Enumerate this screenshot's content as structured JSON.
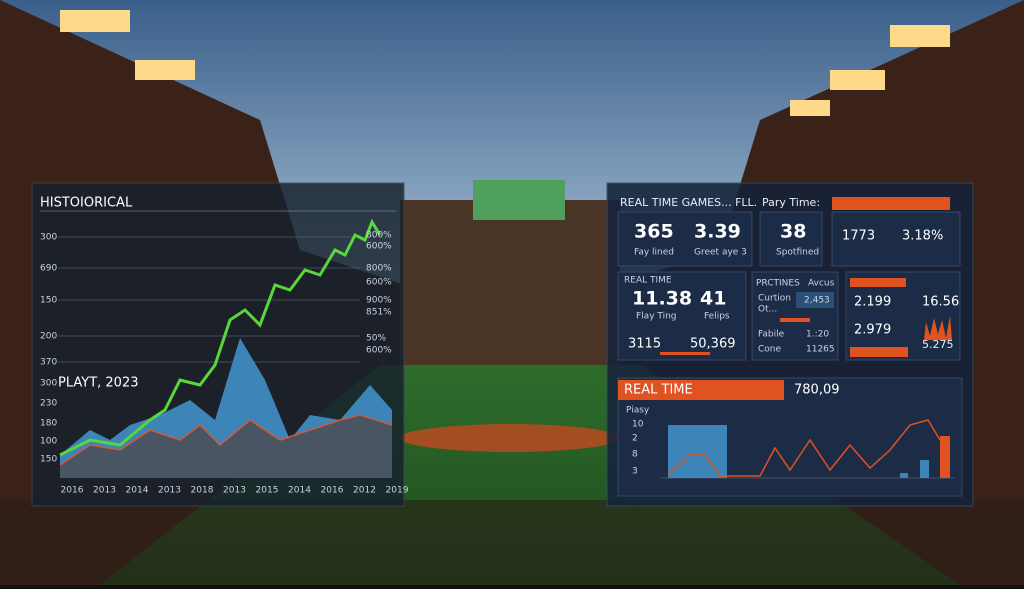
{
  "left_panel": {
    "title": "HISTOIORICAL",
    "subtitle": "PLAYT, 2023",
    "y_labels": [
      "300",
      "690",
      "150",
      "200",
      "370",
      "300",
      "230",
      "180",
      "100",
      "150"
    ],
    "right_labels": [
      "800%",
      "600%",
      "800%",
      "600%",
      "900%",
      "851%",
      "50%",
      "600%"
    ],
    "x_labels": [
      "2016",
      "2013",
      "2014",
      "2013",
      "2018",
      "2013",
      "2015",
      "2014",
      "2016",
      "2012",
      "2019"
    ]
  },
  "right_panel": {
    "title": "REAL TIME GAMES... FLL.",
    "card1": {
      "value1": "365",
      "label1": "Fay lined",
      "value2": "3.39",
      "label2": "Greet aye 3"
    },
    "card2": {
      "heading": "Pary Time:",
      "value": "38",
      "label": "Spotfined"
    },
    "card3": {
      "value1": "1773",
      "value2": "3.18%"
    },
    "card4": {
      "heading": "REAL TIME",
      "value1": "11.38",
      "label1": "Flay Ting",
      "value2": "41",
      "label2": "Felips",
      "value3": "3115",
      "value4": "50,369"
    },
    "card5": {
      "heading1": "PRCTINES",
      "heading2": "Avcus",
      "row1": "Curtion",
      "row2": "Ot...",
      "badge": "2,453",
      "row3": "Fabile",
      "row3_value": "1.:20",
      "row4": "Cone",
      "row4_value": "11265"
    },
    "card6": {
      "value1": "2.199",
      "value2": "16.56",
      "value3": "2.979",
      "value4": "5.275"
    },
    "bottom": {
      "heading": "REAL TIME",
      "value": "780,09",
      "axis_title": "Piasy",
      "y_labels": [
        "10",
        "2",
        "8",
        "3"
      ]
    }
  }
}
